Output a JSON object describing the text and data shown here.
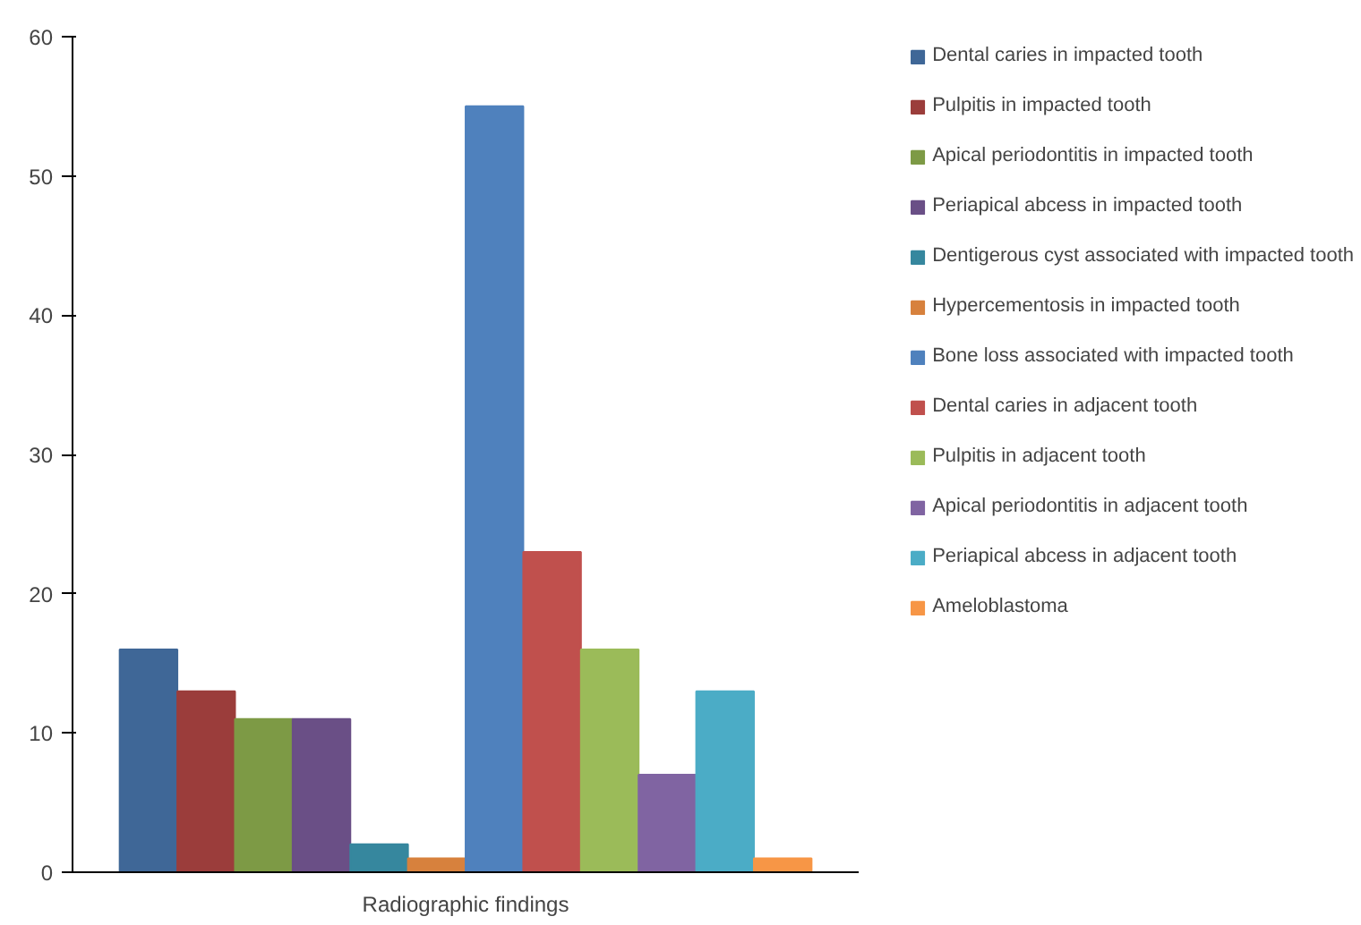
{
  "chart_data": {
    "type": "bar",
    "categories": [
      "Radiographic findings"
    ],
    "series": [
      {
        "name": "Dental caries in impacted tooth",
        "color": "#3f6797",
        "values": [
          16
        ]
      },
      {
        "name": "Pulpitis in impacted tooth",
        "color": "#9b3d3b",
        "values": [
          13
        ]
      },
      {
        "name": "Apical periodontitis in impacted tooth",
        "color": "#7d9a45",
        "values": [
          11
        ]
      },
      {
        "name": "Periapical abcess in impacted tooth",
        "color": "#6a4f86",
        "values": [
          11
        ]
      },
      {
        "name": "Dentigerous cyst associated with impacted tooth",
        "color": "#36879e",
        "values": [
          2
        ]
      },
      {
        "name": "Hypercementosis in impacted tooth",
        "color": "#d7813d",
        "values": [
          1
        ]
      },
      {
        "name": "Bone loss associated with impacted tooth",
        "color": "#4f81bd",
        "values": [
          55
        ]
      },
      {
        "name": "Dental caries in adjacent tooth",
        "color": "#c0504d",
        "values": [
          23
        ]
      },
      {
        "name": "Pulpitis in adjacent tooth",
        "color": "#9bbb59",
        "values": [
          16
        ]
      },
      {
        "name": "Apical periodontitis in adjacent tooth",
        "color": "#8064a2",
        "values": [
          7
        ]
      },
      {
        "name": "Periapical abcess in adjacent tooth",
        "color": "#4bacc6",
        "values": [
          13
        ]
      },
      {
        "name": "Ameloblastoma",
        "color": "#f79646",
        "values": [
          1
        ]
      }
    ],
    "ylim": [
      0,
      60
    ],
    "yticks": [
      0,
      10,
      20,
      30,
      40,
      50,
      60
    ],
    "legend": "right"
  }
}
